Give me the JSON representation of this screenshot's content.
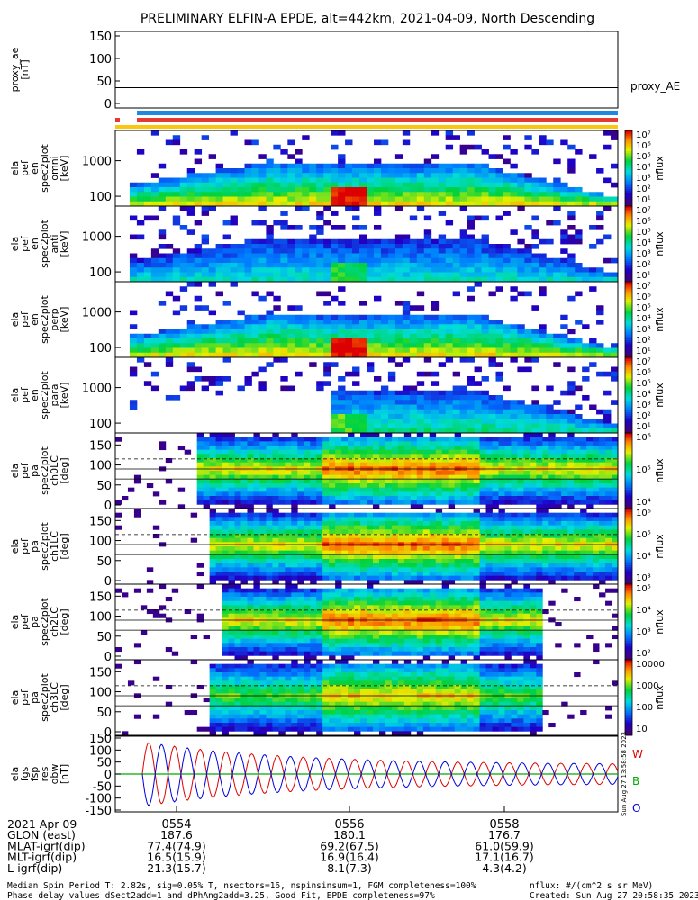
{
  "title": "PRELIMINARY ELFIN-A EPDE, alt=442km, 2021-04-09, North Descending",
  "panels": {
    "proxy": {
      "ylabel_lines": [
        "proxy_ae",
        "[nT]"
      ],
      "yticks": [
        "150",
        "100",
        "50",
        "0"
      ],
      "right_label": "proxy_AE",
      "value": 35
    },
    "spec": [
      {
        "ylabel_lines": [
          "ela",
          "pef",
          "en",
          "spec2plot",
          "omni",
          "[keV]"
        ],
        "yticks": [
          "1000",
          "100"
        ],
        "cbar_ticks": [
          "10⁷",
          "10⁶",
          "10⁵",
          "10⁴",
          "10³",
          "10²",
          "10¹"
        ],
        "cbar_label": "nflux"
      },
      {
        "ylabel_lines": [
          "ela",
          "pef",
          "en",
          "spec2plot",
          "anti",
          "[keV]"
        ],
        "yticks": [
          "1000",
          "100"
        ],
        "cbar_ticks": [
          "10⁷",
          "10⁶",
          "10⁵",
          "10⁴",
          "10³",
          "10²",
          "10¹"
        ],
        "cbar_label": "nflux"
      },
      {
        "ylabel_lines": [
          "ela",
          "pef",
          "en",
          "spec2plot",
          "perp",
          "[keV]"
        ],
        "yticks": [
          "1000",
          "100"
        ],
        "cbar_ticks": [
          "10⁷",
          "10⁶",
          "10⁵",
          "10⁴",
          "10³",
          "10²",
          "10¹"
        ],
        "cbar_label": "nflux"
      },
      {
        "ylabel_lines": [
          "ela",
          "pef",
          "en",
          "spec2plot",
          "para",
          "[keV]"
        ],
        "yticks": [
          "1000",
          "100"
        ],
        "cbar_ticks": [
          "10⁷",
          "10⁶",
          "10⁵",
          "10⁴",
          "10³",
          "10²",
          "10¹"
        ],
        "cbar_label": "nflux"
      }
    ],
    "pa": [
      {
        "ylabel_lines": [
          "ela",
          "pef",
          "pa",
          "spec2plot",
          "ch0LC",
          "[deg]"
        ],
        "yticks": [
          "150",
          "100",
          "50",
          "0"
        ],
        "cbar_ticks": [
          "10⁶",
          "10⁵",
          "10⁴"
        ],
        "cbar_label": "nflux"
      },
      {
        "ylabel_lines": [
          "ela",
          "pef",
          "pa",
          "spec2plot",
          "ch1LC",
          "[deg]"
        ],
        "yticks": [
          "150",
          "100",
          "50",
          "0"
        ],
        "cbar_ticks": [
          "10⁶",
          "10⁵",
          "10⁴",
          "10³"
        ],
        "cbar_label": "nflux"
      },
      {
        "ylabel_lines": [
          "ela",
          "pef",
          "pa",
          "spec2plot",
          "ch2LC",
          "[deg]"
        ],
        "yticks": [
          "150",
          "100",
          "50",
          "0"
        ],
        "cbar_ticks": [
          "10⁵",
          "10⁴",
          "10³",
          "10²"
        ],
        "cbar_label": "nflux"
      },
      {
        "ylabel_lines": [
          "ela",
          "pef",
          "pa",
          "spec2plot",
          "ch3LC",
          "[deg]"
        ],
        "yticks": [
          "150",
          "100",
          "50",
          "0"
        ],
        "cbar_ticks": [
          "10000",
          "1000",
          "100",
          "10"
        ],
        "cbar_label": "nflux"
      }
    ],
    "fgs": {
      "ylabel_lines": [
        "ela",
        "fgs",
        "fsp",
        "res",
        "obw",
        "[nT]"
      ],
      "yticks": [
        "150",
        "100",
        "50",
        "0",
        "-50",
        "-100",
        "-150"
      ],
      "legend": [
        "W",
        "B",
        "O"
      ],
      "side_stamp": "Sun Aug 27 13:58:58 2023"
    }
  },
  "time_axis": {
    "ticks": [
      "0554",
      "0556",
      "0558"
    ]
  },
  "ephemeris": {
    "rows": [
      {
        "label": "2021 Apr 09",
        "v1": "",
        "v2": "",
        "v3": ""
      },
      {
        "label": "GLON (east)",
        "v1": "187.6",
        "v2": "180.1",
        "v3": "176.7"
      },
      {
        "label": "MLAT-igrf(dip)",
        "v1": "77.4(74.9)",
        "v2": "69.2(67.5)",
        "v3": "61.0(59.9)"
      },
      {
        "label": "MLT-igrf(dip)",
        "v1": "16.5(15.9)",
        "v2": "16.9(16.4)",
        "v3": "17.1(16.7)"
      },
      {
        "label": "L-igrf(dip)",
        "v1": "21.3(15.7)",
        "v2": "8.1(7.3)",
        "v3": "4.3(4.2)"
      }
    ]
  },
  "footer": {
    "line1": "Median Spin Period T: 2.82s, sig=0.05% T, nsectors=16, nspinsinsum=1, FGM completeness=100%",
    "line2": "Phase delay values dSect2add=1 and dPhAng2add=3.25, Good Fit, EPDE completeness=97%",
    "units": "nflux: #/(cm^2 s sr MeV)",
    "created": "Created: Sun Aug 27 20:58:35 2023"
  },
  "colors": {
    "bar_blue": "#1e88e5",
    "bar_red": "#e53935",
    "bar_yellow": "#f9c80e",
    "line_w": "#e00000",
    "line_b": "#00aa00",
    "line_o": "#0000dd"
  },
  "chart_data": {
    "type": "heatmap",
    "title": "PRELIMINARY ELFIN-A EPDE, alt=442km, 2021-04-09, North Descending",
    "x_ticks": [
      "0554",
      "0556",
      "0558"
    ],
    "proxy_ae_nT": 35,
    "proxy_ae_ylim": [
      0,
      150
    ],
    "energy_axis_log": true,
    "energy_yticks_keV": [
      100,
      1000
    ],
    "pitch_angle_ylim_deg": [
      0,
      180
    ],
    "fgs_ylim_nT": [
      -150,
      150
    ],
    "series": [
      {
        "name": "W",
        "description_color": "red"
      },
      {
        "name": "B",
        "description_color": "green"
      },
      {
        "name": "O",
        "description_color": "blue"
      }
    ]
  }
}
